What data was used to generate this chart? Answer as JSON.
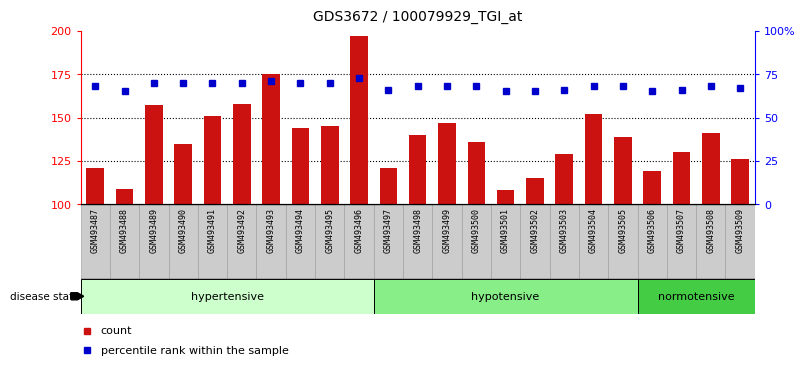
{
  "title": "GDS3672 / 100079929_TGI_at",
  "samples": [
    "GSM493487",
    "GSM493488",
    "GSM493489",
    "GSM493490",
    "GSM493491",
    "GSM493492",
    "GSM493493",
    "GSM493494",
    "GSM493495",
    "GSM493496",
    "GSM493497",
    "GSM493498",
    "GSM493499",
    "GSM493500",
    "GSM493501",
    "GSM493502",
    "GSM493503",
    "GSM493504",
    "GSM493505",
    "GSM493506",
    "GSM493507",
    "GSM493508",
    "GSM493509"
  ],
  "counts": [
    121,
    109,
    157,
    135,
    151,
    158,
    175,
    144,
    145,
    197,
    121,
    140,
    147,
    136,
    108,
    115,
    129,
    152,
    139,
    119,
    130,
    141,
    126
  ],
  "percentiles": [
    68,
    65,
    70,
    70,
    70,
    70,
    71,
    70,
    70,
    73,
    66,
    68,
    68,
    68,
    65,
    65,
    66,
    68,
    68,
    65,
    66,
    68,
    67
  ],
  "groups": [
    {
      "name": "hypertensive",
      "start": 0,
      "end": 9,
      "color": "#ccffcc"
    },
    {
      "name": "hypotensive",
      "start": 10,
      "end": 18,
      "color": "#88ee88"
    },
    {
      "name": "normotensive",
      "start": 19,
      "end": 22,
      "color": "#44cc44"
    }
  ],
  "bar_color": "#cc1111",
  "dot_color": "#0000cc",
  "ylim_left": [
    100,
    200
  ],
  "ylim_right": [
    0,
    100
  ],
  "yticks_left": [
    100,
    125,
    150,
    175,
    200
  ],
  "yticks_right": [
    0,
    25,
    50,
    75,
    100
  ],
  "yticklabels_right": [
    "0",
    "25",
    "50",
    "75",
    "100%"
  ],
  "grid_values": [
    125,
    150,
    175
  ],
  "background_color": "#ffffff",
  "legend_count_label": "count",
  "legend_percentile_label": "percentile rank within the sample",
  "disease_state_label": "disease state",
  "label_bg_color": "#cccccc",
  "label_border_color": "#999999"
}
